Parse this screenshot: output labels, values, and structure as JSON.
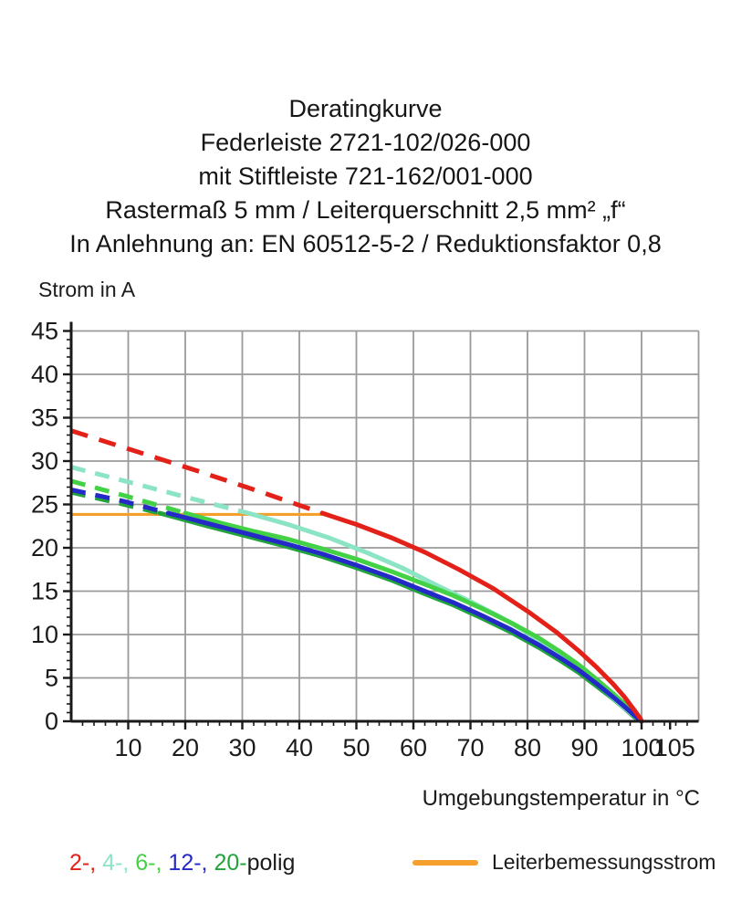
{
  "header": {
    "lines": [
      "Deratingkurve",
      "Federleiste 2721-102/026-000",
      "mit Stiftleiste 721-162/001-000",
      "Rastermaß 5 mm / Leiterquerschnitt 2,5 mm² „f“",
      "In Anlehnung an: EN 60512-5-2 / Reduktionsfaktor 0,8"
    ]
  },
  "chart_data": {
    "type": "line",
    "title": "Deratingkurve",
    "xlabel": "Umgebungstemperatur in °C",
    "ylabel": "Strom in A",
    "xlim": [
      0,
      110
    ],
    "ylim": [
      0,
      45
    ],
    "x_major_ticks": [
      10,
      20,
      30,
      40,
      50,
      60,
      70,
      80,
      90,
      100,
      105
    ],
    "y_major_ticks": [
      0,
      5,
      10,
      15,
      20,
      25,
      30,
      35,
      40,
      45
    ],
    "x_minor_step": 2,
    "y_minor_step": 1,
    "grid": true,
    "grid_color": "#9a9a9a",
    "axis_color": "#1a1a1a",
    "tick_label_color": "#1b1b1b",
    "legend_position": "bottom",
    "series": [
      {
        "name": "2-polig",
        "color": "#e32119",
        "dashed": [
          [
            0,
            33.5
          ],
          [
            11,
            31.2
          ],
          [
            22,
            28.9
          ],
          [
            33,
            26.5
          ],
          [
            44,
            24.0
          ]
        ],
        "solid": [
          [
            44,
            24.0
          ],
          [
            50,
            22.7
          ],
          [
            56,
            21.2
          ],
          [
            62,
            19.5
          ],
          [
            68,
            17.5
          ],
          [
            74,
            15.3
          ],
          [
            80,
            12.7
          ],
          [
            85,
            10.3
          ],
          [
            89,
            8.1
          ],
          [
            92,
            6.3
          ],
          [
            95,
            4.3
          ],
          [
            97,
            2.8
          ],
          [
            98.7,
            1.3
          ],
          [
            99.8,
            0.3
          ],
          [
            100,
            0
          ]
        ]
      },
      {
        "name": "4-polig",
        "color": "#8be4c4",
        "dashed": [
          [
            0,
            29.3
          ],
          [
            10,
            27.6
          ],
          [
            21,
            25.7
          ],
          [
            31,
            24.0
          ]
        ],
        "solid": [
          [
            31,
            24.0
          ],
          [
            38,
            22.7
          ],
          [
            45,
            21.2
          ],
          [
            52,
            19.4
          ],
          [
            58,
            17.7
          ],
          [
            64,
            15.7
          ],
          [
            70,
            13.8
          ],
          [
            75,
            12.1
          ],
          [
            80,
            10.2
          ],
          [
            84,
            8.5
          ],
          [
            88,
            6.6
          ],
          [
            91,
            5.0
          ],
          [
            94,
            3.3
          ],
          [
            96,
            2.1
          ],
          [
            98,
            1.0
          ],
          [
            99.5,
            0.2
          ],
          [
            100,
            0
          ]
        ]
      },
      {
        "name": "6-polig",
        "color": "#43d146",
        "dashed": [
          [
            0,
            27.7
          ],
          [
            10,
            25.9
          ],
          [
            20,
            24.0
          ]
        ],
        "solid": [
          [
            20,
            24.0
          ],
          [
            26,
            22.9
          ],
          [
            32,
            21.9
          ],
          [
            38,
            21.0
          ],
          [
            44,
            19.9
          ],
          [
            50,
            18.7
          ],
          [
            56,
            17.3
          ],
          [
            62,
            15.8
          ],
          [
            67,
            14.5
          ],
          [
            72,
            13.0
          ],
          [
            77,
            11.4
          ],
          [
            82,
            9.6
          ],
          [
            86,
            7.9
          ],
          [
            89,
            6.5
          ],
          [
            92,
            4.9
          ],
          [
            95,
            3.2
          ],
          [
            97,
            2.0
          ],
          [
            98.7,
            0.9
          ],
          [
            100,
            0
          ]
        ]
      },
      {
        "name": "12-polig",
        "color": "#2429c8",
        "dashed": [
          [
            0,
            26.7
          ],
          [
            9,
            25.4
          ],
          [
            17,
            24.0
          ]
        ],
        "solid": [
          [
            17,
            24.0
          ],
          [
            24,
            22.8
          ],
          [
            31,
            21.6
          ],
          [
            38,
            20.4
          ],
          [
            44,
            19.3
          ],
          [
            50,
            18.0
          ],
          [
            56,
            16.6
          ],
          [
            62,
            15.0
          ],
          [
            67,
            13.7
          ],
          [
            72,
            12.2
          ],
          [
            77,
            10.6
          ],
          [
            82,
            8.8
          ],
          [
            86,
            7.2
          ],
          [
            89,
            5.9
          ],
          [
            92,
            4.4
          ],
          [
            95,
            2.8
          ],
          [
            97,
            1.7
          ],
          [
            98.7,
            0.7
          ],
          [
            100,
            0
          ]
        ]
      },
      {
        "name": "20-polig",
        "color": "#23a33c",
        "dashed": [
          [
            0,
            26.4
          ],
          [
            8,
            25.2
          ],
          [
            15.5,
            24.0
          ]
        ],
        "solid": [
          [
            15.5,
            24.0
          ],
          [
            24,
            22.5
          ],
          [
            31,
            21.3
          ],
          [
            38,
            20.1
          ],
          [
            44,
            19.0
          ],
          [
            50,
            17.7
          ],
          [
            56,
            16.3
          ],
          [
            62,
            14.7
          ],
          [
            67,
            13.4
          ],
          [
            72,
            11.9
          ],
          [
            77,
            10.3
          ],
          [
            82,
            8.5
          ],
          [
            86,
            6.9
          ],
          [
            89,
            5.6
          ],
          [
            92,
            4.1
          ],
          [
            95,
            2.6
          ],
          [
            97,
            1.5
          ],
          [
            98.7,
            0.5
          ],
          [
            100,
            0
          ]
        ]
      }
    ],
    "reference_line": {
      "name": "Leiterbemessungsstrom",
      "color": "#f5a02c",
      "y": 23.85,
      "x_from": 0,
      "x_to": 44
    }
  },
  "legend": {
    "poles": [
      {
        "label": "2-,",
        "color": "#e32119"
      },
      {
        "label": "4-,",
        "color": "#8be4c4"
      },
      {
        "label": "6-,",
        "color": "#43d146"
      },
      {
        "label": "12-,",
        "color": "#2429c8"
      },
      {
        "label": "20-",
        "color": "#23a33c"
      }
    ],
    "poles_suffix": "polig",
    "poles_suffix_color": "#1b1b1b",
    "rated_current_label": "Leiterbemessungsstrom",
    "rated_current_color": "#f5a02c"
  }
}
